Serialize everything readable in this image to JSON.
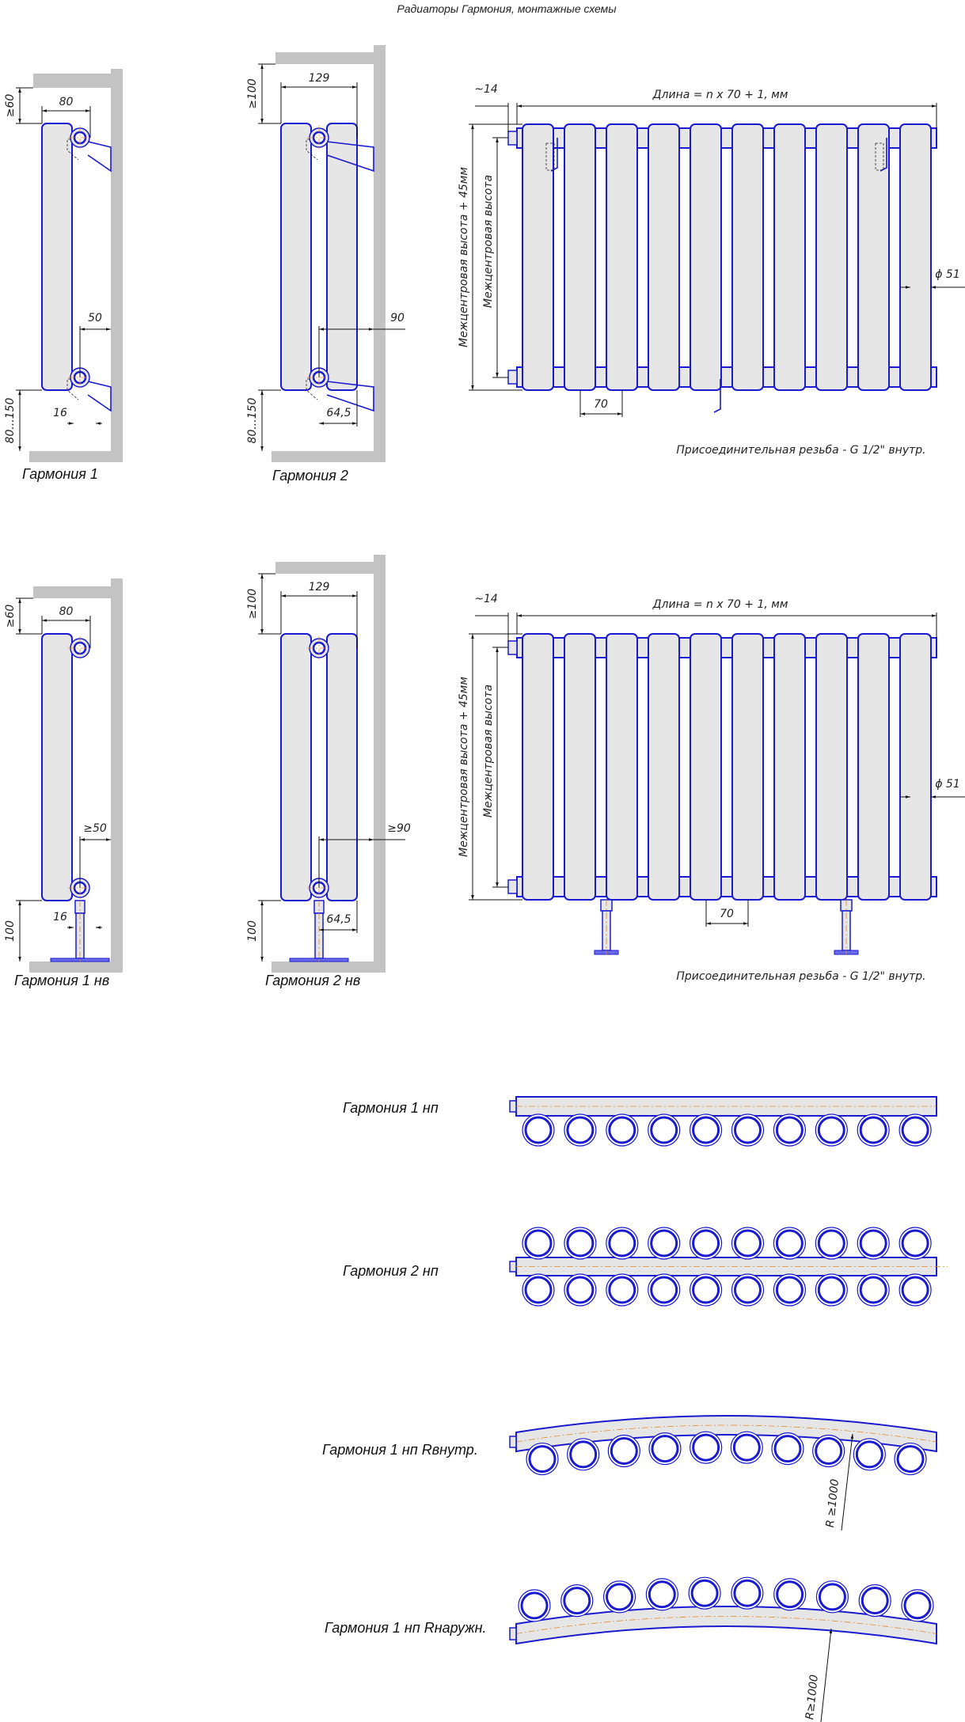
{
  "title": "Радиаторы Гармония, монтажные схемы",
  "colors": {
    "outline": "#1a1ad0",
    "fill": "#e6e6e6",
    "wall": "#c3c3c3",
    "centerline": "#e08a30"
  },
  "section_count": 10,
  "side_views": {
    "g1": {
      "label": "Гармония 1",
      "top_gap": "≥60",
      "depth": "80",
      "wall_gap": "50",
      "offset": "16",
      "bottom_gap": "80...150"
    },
    "g2": {
      "label": "Гармония 2",
      "top_gap": "≥100",
      "depth": "129",
      "wall_gap": "90",
      "offset": "64,5",
      "bottom_gap": "80...150"
    },
    "g1nv": {
      "label": "Гармония 1 нв",
      "top_gap": "≥60",
      "depth": "80",
      "wall_gap": "≥50",
      "offset": "16",
      "bottom_gap": "100"
    },
    "g2nv": {
      "label": "Гармония 2 нв",
      "top_gap": "≥100",
      "depth": "129",
      "wall_gap": "≥90",
      "offset": "64,5",
      "bottom_gap": "100"
    }
  },
  "front_view": {
    "length": "Длина = n х 70 + 1, мм",
    "valve_offset": "~14",
    "overall_height": "Межцентровая высота + 45мм",
    "center_height": "Межцентровая высота",
    "diameter": "ϕ 51",
    "pitch": "70",
    "thread_note": "Присоединительная резьба - G 1/2\" внутр."
  },
  "plan_views": {
    "g1np": {
      "label": "Гармония 1 нп"
    },
    "g2np": {
      "label": "Гармония 2 нп"
    },
    "inner": {
      "label": "Гармония 1 нп Rвнутр.",
      "radius": "R ≥1000"
    },
    "outer": {
      "label": "Гармония 1 нп Rнаружн.",
      "radius": "R≥1000"
    }
  }
}
